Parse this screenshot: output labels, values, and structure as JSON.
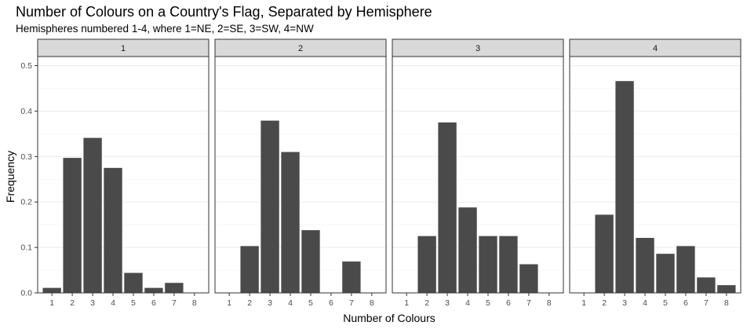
{
  "chart_data": {
    "type": "bar",
    "title": "Number of Colours on a Country's Flag, Separated by Hemisphere",
    "subtitle": "Hemispheres numbered 1-4, where 1=NE, 2=SE, 3=SW, 4=NW",
    "xlabel": "Number of Colours",
    "ylabel": "Frequency",
    "ylim": [
      0,
      0.52
    ],
    "yticks": [
      0.0,
      0.1,
      0.2,
      0.3,
      0.4,
      0.5
    ],
    "ytick_labels": [
      "0.0",
      "0.1",
      "0.2",
      "0.3",
      "0.4",
      "0.5"
    ],
    "xticks": [
      1,
      2,
      3,
      4,
      5,
      6,
      7,
      8
    ],
    "xtick_labels": [
      "1",
      "2",
      "3",
      "4",
      "5",
      "6",
      "7",
      "8"
    ],
    "grid": true,
    "bar_color": "#4a4a4a",
    "panels": [
      {
        "label": "1",
        "x": [
          1,
          2,
          3,
          4,
          5,
          6,
          7
        ],
        "values": [
          0.011,
          0.297,
          0.341,
          0.275,
          0.044,
          0.011,
          0.022
        ]
      },
      {
        "label": "2",
        "x": [
          2,
          3,
          4,
          5,
          7
        ],
        "values": [
          0.103,
          0.379,
          0.31,
          0.138,
          0.069
        ]
      },
      {
        "label": "3",
        "x": [
          2,
          3,
          4,
          5,
          6,
          7
        ],
        "values": [
          0.125,
          0.375,
          0.188,
          0.125,
          0.125,
          0.063
        ]
      },
      {
        "label": "4",
        "x": [
          2,
          3,
          4,
          5,
          6,
          7,
          8
        ],
        "values": [
          0.172,
          0.466,
          0.121,
          0.086,
          0.103,
          0.034,
          0.017
        ]
      }
    ]
  }
}
